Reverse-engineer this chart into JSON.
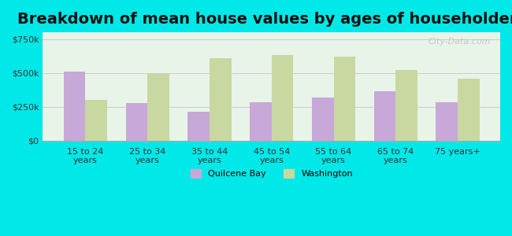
{
  "title": "Breakdown of mean house values by ages of householders",
  "categories": [
    "15 to 24\nyears",
    "25 to 34\nyears",
    "35 to 44\nyears",
    "45 to 54\nyears",
    "55 to 64\nyears",
    "65 to 74\nyears",
    "75 years+"
  ],
  "quilcene_bay": [
    510000,
    275000,
    215000,
    285000,
    320000,
    365000,
    280000
  ],
  "washington": [
    300000,
    490000,
    610000,
    630000,
    620000,
    520000,
    460000
  ],
  "quilcene_color": "#c8a8d8",
  "washington_color": "#c8d8a0",
  "background_color": "#00e8e8",
  "plot_bg_top": "#f0f8e8",
  "plot_bg_bottom": "#e8f8f0",
  "title_fontsize": 14,
  "legend_labels": [
    "Quilcene Bay",
    "Washington"
  ],
  "yticks": [
    0,
    250000,
    500000,
    750000
  ],
  "ylim": [
    0,
    800000
  ],
  "watermark": "City-Data.com"
}
